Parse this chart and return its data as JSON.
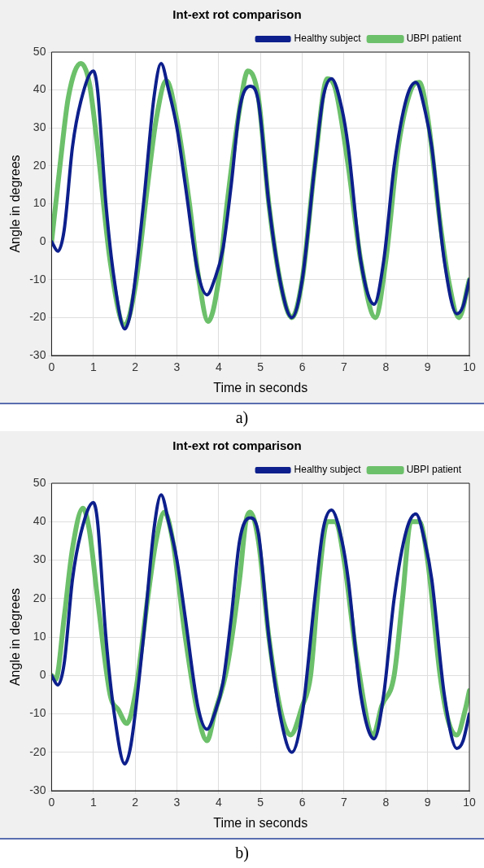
{
  "chart_data": [
    {
      "type": "line",
      "title": "Int-ext rot comparison",
      "xlabel": "Time in seconds",
      "ylabel": "Angle in degrees",
      "xlim": [
        0,
        10
      ],
      "xticks": [
        0,
        1,
        2,
        3,
        4,
        5,
        6,
        7,
        8,
        9,
        10
      ],
      "ylim": [
        -30,
        50
      ],
      "yticks": [
        -30,
        -20,
        -10,
        0,
        10,
        20,
        30,
        40,
        50
      ],
      "grid": true,
      "legend": "top right",
      "annotations": [
        "a)"
      ],
      "series": [
        {
          "name": "Healthy subject",
          "color": "#0d1f8c",
          "x": [
            0,
            0.15,
            0.3,
            0.5,
            0.7,
            1.0,
            1.1,
            1.3,
            1.5,
            1.75,
            1.9,
            2.2,
            2.45,
            2.62,
            2.8,
            3.0,
            3.2,
            3.5,
            3.72,
            3.9,
            4.1,
            4.3,
            4.5,
            4.75,
            4.95,
            5.2,
            5.5,
            5.75,
            6.0,
            6.3,
            6.5,
            6.7,
            6.95,
            7.1,
            7.4,
            7.72,
            7.95,
            8.2,
            8.5,
            8.72,
            8.95,
            9.1,
            9.4,
            9.7,
            9.85,
            10
          ],
          "values": [
            0,
            -2.5,
            3,
            25,
            37,
            45,
            40,
            10,
            -10,
            -23,
            -18,
            10,
            38,
            47,
            40,
            30,
            15,
            -8,
            -14,
            -10,
            -2,
            15,
            35,
            41,
            37,
            10,
            -12,
            -20,
            -10,
            20,
            38,
            43,
            35,
            25,
            -5,
            -16.5,
            -5,
            20,
            38,
            42,
            34,
            25,
            -5,
            -19,
            -17,
            -10
          ]
        },
        {
          "name": "UBPI patient",
          "color": "#6cc06a",
          "x": [
            0,
            0.2,
            0.4,
            0.7,
            0.9,
            1.1,
            1.4,
            1.75,
            2.0,
            2.3,
            2.5,
            2.75,
            3.0,
            3.3,
            3.5,
            3.75,
            4.0,
            4.2,
            4.5,
            4.7,
            4.95,
            5.2,
            5.5,
            5.75,
            6.0,
            6.3,
            6.6,
            6.8,
            7.1,
            7.4,
            7.75,
            8.0,
            8.3,
            8.6,
            8.8,
            9.0,
            9.3,
            9.5,
            9.75,
            10
          ],
          "values": [
            0,
            20,
            38,
            47,
            42,
            25,
            -5,
            -22,
            -12,
            15,
            32,
            42.5,
            32,
            10,
            -8,
            -21,
            -10,
            10,
            35,
            45,
            38,
            10,
            -12,
            -20,
            -10,
            20,
            43,
            40,
            20,
            -5,
            -20,
            -5,
            25,
            40,
            42,
            33,
            5,
            -10,
            -20,
            -10
          ]
        }
      ]
    },
    {
      "type": "line",
      "title": "Int-ext rot comparison",
      "xlabel": "Time in seconds",
      "ylabel": "Angle in degrees",
      "xlim": [
        0,
        10
      ],
      "xticks": [
        0,
        1,
        2,
        3,
        4,
        5,
        6,
        7,
        8,
        9,
        10
      ],
      "ylim": [
        -30,
        50
      ],
      "yticks": [
        -30,
        -20,
        -10,
        0,
        10,
        20,
        30,
        40,
        50
      ],
      "grid": true,
      "legend": "top right",
      "annotations": [
        "b)"
      ],
      "series": [
        {
          "name": "Healthy subject",
          "color": "#0d1f8c",
          "x": [
            0,
            0.15,
            0.3,
            0.5,
            0.7,
            1.0,
            1.1,
            1.3,
            1.5,
            1.75,
            1.9,
            2.2,
            2.45,
            2.62,
            2.8,
            3.0,
            3.2,
            3.5,
            3.72,
            3.9,
            4.1,
            4.3,
            4.5,
            4.75,
            4.95,
            5.2,
            5.5,
            5.75,
            6.0,
            6.3,
            6.5,
            6.7,
            6.95,
            7.1,
            7.4,
            7.72,
            7.95,
            8.2,
            8.5,
            8.72,
            8.95,
            9.1,
            9.4,
            9.7,
            9.85,
            10
          ],
          "values": [
            0,
            -2.5,
            3,
            25,
            37,
            45,
            40,
            10,
            -10,
            -23,
            -18,
            10,
            38,
            47,
            40,
            30,
            15,
            -8,
            -14,
            -10,
            -2,
            15,
            35,
            41,
            37,
            10,
            -12,
            -20,
            -10,
            20,
            38,
            43,
            35,
            25,
            -5,
            -16.5,
            -5,
            20,
            38,
            42,
            34,
            25,
            -5,
            -19,
            -17,
            -10
          ]
        },
        {
          "name": "UBPI patient",
          "color": "#6cc06a",
          "x": [
            0,
            0.1,
            0.3,
            0.5,
            0.75,
            0.9,
            1.1,
            1.4,
            1.6,
            1.8,
            2.0,
            2.3,
            2.5,
            2.7,
            2.9,
            3.2,
            3.5,
            3.72,
            3.9,
            4.2,
            4.5,
            4.65,
            4.75,
            4.95,
            5.2,
            5.5,
            5.72,
            6.0,
            6.2,
            6.4,
            6.6,
            6.8,
            7.0,
            7.3,
            7.7,
            7.9,
            8.2,
            8.4,
            8.6,
            8.8,
            9.0,
            9.3,
            9.5,
            9.7,
            9.9,
            10
          ],
          "values": [
            0,
            -1,
            15,
            33,
            43.5,
            38,
            20,
            -5,
            -9,
            -12.5,
            -5,
            20,
            35,
            42.5,
            35,
            10,
            -10,
            -17,
            -10,
            2,
            25,
            40,
            42.5,
            35,
            10,
            -10,
            -15.5,
            -8,
            0,
            25,
            40,
            40,
            30,
            5,
            -15.5,
            -8,
            0,
            20,
            40,
            40,
            30,
            0,
            -12,
            -15.5,
            -9,
            -4
          ]
        }
      ]
    }
  ]
}
